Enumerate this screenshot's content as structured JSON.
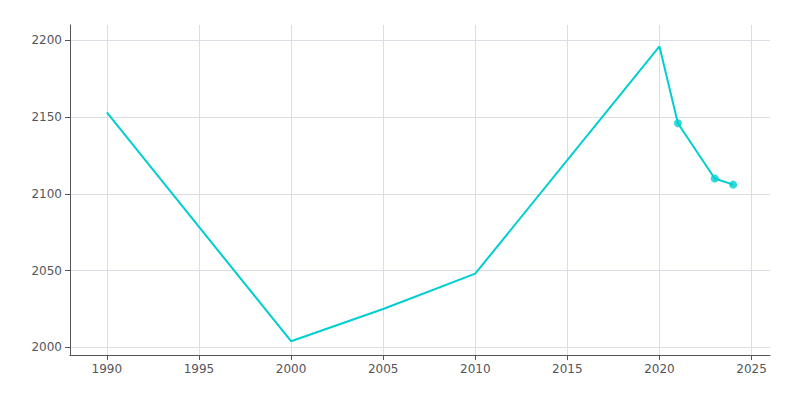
{
  "chart_data": {
    "type": "line",
    "series": [
      {
        "type": "line",
        "x": [
          1990,
          2000,
          2005,
          2010,
          2020,
          2021,
          2023,
          2024
        ],
        "values": [
          2153,
          2004,
          2025,
          2048,
          2196,
          2146,
          2110,
          2106
        ],
        "color": "#00CED1",
        "marker": "none"
      },
      {
        "type": "scatter",
        "x": [
          2021,
          2023,
          2024
        ],
        "values": [
          2146,
          2110,
          2106
        ],
        "color": "#00CED1",
        "marker": "circle"
      }
    ],
    "xlim": [
      1988,
      2026
    ],
    "ylim": [
      1995,
      2210
    ],
    "xticks": [
      1990,
      1995,
      2000,
      2005,
      2010,
      2015,
      2020,
      2025
    ],
    "yticks": [
      2000,
      2050,
      2100,
      2150,
      2200
    ],
    "grid": true
  }
}
